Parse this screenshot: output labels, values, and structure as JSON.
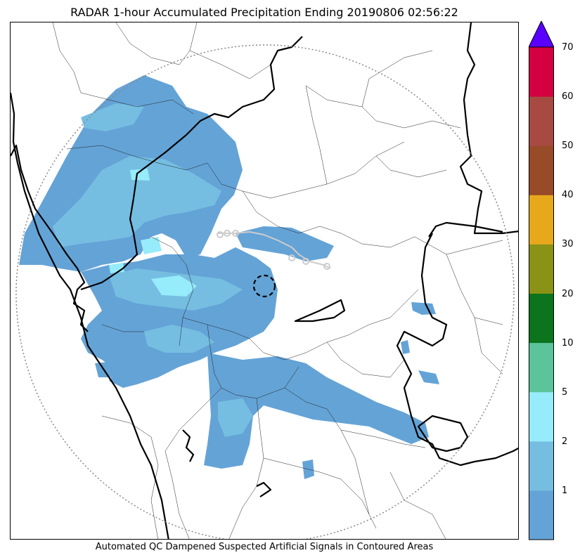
{
  "title": "RADAR 1-hour Accumulated Precipitation Ending 20190806 02:56:22",
  "caption": "Automated QC Dampened Suspected Artificial Signals in Contoured Areas",
  "colorbar": {
    "bins": [
      {
        "from": 0,
        "to": 1,
        "color": "#64a3d6"
      },
      {
        "from": 1,
        "to": 2,
        "color": "#75bee2"
      },
      {
        "from": 2,
        "to": 5,
        "color": "#96ecfa"
      },
      {
        "from": 5,
        "to": 10,
        "color": "#5bc49a"
      },
      {
        "from": 10,
        "to": 20,
        "color": "#0b741c"
      },
      {
        "from": 20,
        "to": 30,
        "color": "#8a9316"
      },
      {
        "from": 30,
        "to": 40,
        "color": "#e7a81c"
      },
      {
        "from": 40,
        "to": 50,
        "color": "#984b27"
      },
      {
        "from": 50,
        "to": 60,
        "color": "#a64a42"
      },
      {
        "from": 60,
        "to": 70,
        "color": "#d4003f"
      }
    ],
    "extend_color": "#5a00ff",
    "tick_labels": [
      "1",
      "2",
      "5",
      "10",
      "20",
      "30",
      "40",
      "50",
      "60",
      "70"
    ]
  }
}
